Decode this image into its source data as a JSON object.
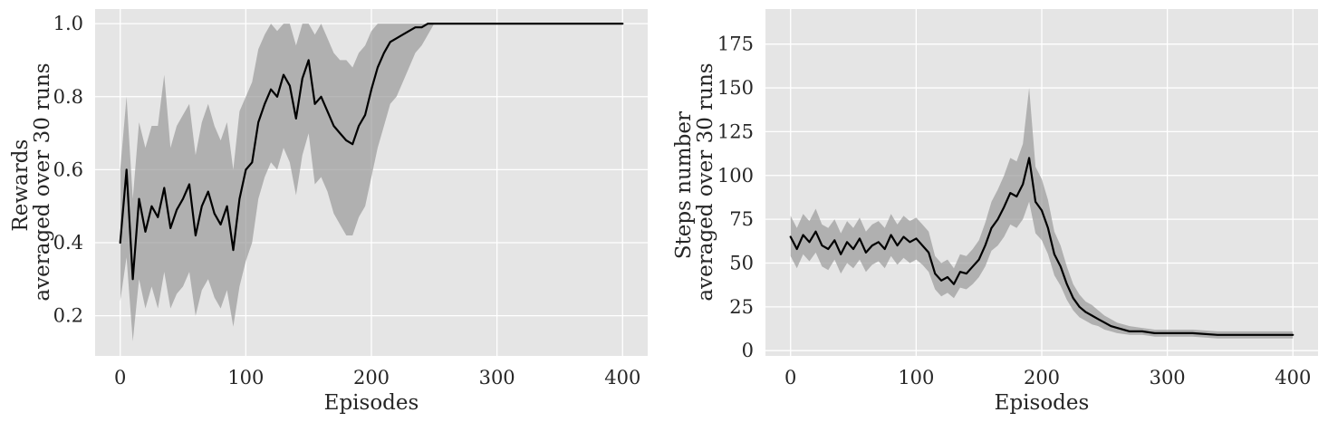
{
  "chart_data": [
    {
      "type": "line",
      "xlabel": "Episodes",
      "ylabel_lines": [
        "Rewards",
        "averaged over 30 runs"
      ],
      "xlim": [
        -20,
        420
      ],
      "ylim": [
        0.09,
        1.04
      ],
      "xticks": [
        0,
        100,
        200,
        300,
        400
      ],
      "yticks": [
        0.2,
        0.4,
        0.6,
        0.8,
        1.0
      ],
      "ytick_labels": [
        "0.2",
        "0.4",
        "0.6",
        "0.8",
        "1.0"
      ],
      "grid": true,
      "line_color": "#000000",
      "band_color": "#9a9a9a",
      "series": [
        {
          "x": [
            0,
            5,
            10,
            15,
            20,
            25,
            30,
            35,
            40,
            45,
            50,
            55,
            60,
            65,
            70,
            75,
            80,
            85,
            90,
            95,
            100,
            105,
            110,
            115,
            120,
            125,
            130,
            135,
            140,
            145,
            150,
            155,
            160,
            165,
            170,
            175,
            180,
            185,
            190,
            195,
            200,
            205,
            210,
            215,
            220,
            225,
            230,
            235,
            240,
            245,
            250,
            300,
            350,
            400
          ],
          "y": [
            0.4,
            0.6,
            0.3,
            0.52,
            0.43,
            0.5,
            0.47,
            0.55,
            0.44,
            0.49,
            0.52,
            0.56,
            0.42,
            0.5,
            0.54,
            0.48,
            0.45,
            0.5,
            0.38,
            0.52,
            0.6,
            0.62,
            0.73,
            0.78,
            0.82,
            0.8,
            0.86,
            0.83,
            0.74,
            0.85,
            0.9,
            0.78,
            0.8,
            0.76,
            0.72,
            0.7,
            0.68,
            0.67,
            0.72,
            0.75,
            0.82,
            0.88,
            0.92,
            0.95,
            0.96,
            0.97,
            0.98,
            0.99,
            0.99,
            1.0,
            1.0,
            1.0,
            1.0,
            1.0
          ],
          "ci_low": [
            0.24,
            0.36,
            0.13,
            0.3,
            0.22,
            0.28,
            0.22,
            0.32,
            0.22,
            0.26,
            0.28,
            0.32,
            0.2,
            0.27,
            0.3,
            0.25,
            0.22,
            0.27,
            0.17,
            0.28,
            0.35,
            0.4,
            0.52,
            0.58,
            0.62,
            0.6,
            0.66,
            0.62,
            0.53,
            0.64,
            0.7,
            0.56,
            0.58,
            0.54,
            0.48,
            0.45,
            0.42,
            0.42,
            0.47,
            0.5,
            0.58,
            0.66,
            0.72,
            0.78,
            0.8,
            0.84,
            0.88,
            0.92,
            0.94,
            0.97,
            1.0,
            1.0,
            1.0,
            1.0
          ],
          "ci_high": [
            0.6,
            0.8,
            0.52,
            0.73,
            0.66,
            0.72,
            0.72,
            0.86,
            0.66,
            0.72,
            0.75,
            0.78,
            0.64,
            0.73,
            0.78,
            0.72,
            0.68,
            0.73,
            0.6,
            0.76,
            0.8,
            0.84,
            0.93,
            0.97,
            1.0,
            0.98,
            1.0,
            1.0,
            0.94,
            1.0,
            1.0,
            0.97,
            1.0,
            0.96,
            0.92,
            0.9,
            0.9,
            0.88,
            0.92,
            0.94,
            0.98,
            1.0,
            1.0,
            1.0,
            1.0,
            1.0,
            1.0,
            1.0,
            1.0,
            1.0,
            1.0,
            1.0,
            1.0,
            1.0
          ]
        }
      ]
    },
    {
      "type": "line",
      "xlabel": "Episodes",
      "ylabel_lines": [
        "Steps number",
        "averaged over 30 runs"
      ],
      "xlim": [
        -20,
        420
      ],
      "ylim": [
        -3,
        195
      ],
      "xticks": [
        0,
        100,
        200,
        300,
        400
      ],
      "yticks": [
        0,
        25,
        50,
        75,
        100,
        125,
        150,
        175
      ],
      "ytick_labels": [
        "0",
        "25",
        "50",
        "75",
        "100",
        "125",
        "150",
        "175"
      ],
      "grid": true,
      "line_color": "#000000",
      "band_color": "#9a9a9a",
      "series": [
        {
          "x": [
            0,
            5,
            10,
            15,
            20,
            25,
            30,
            35,
            40,
            45,
            50,
            55,
            60,
            65,
            70,
            75,
            80,
            85,
            90,
            95,
            100,
            105,
            110,
            115,
            120,
            125,
            130,
            135,
            140,
            145,
            150,
            155,
            160,
            165,
            170,
            175,
            180,
            185,
            190,
            195,
            200,
            205,
            210,
            215,
            220,
            225,
            230,
            235,
            240,
            245,
            250,
            255,
            260,
            270,
            280,
            290,
            300,
            320,
            340,
            360,
            380,
            400
          ],
          "y": [
            65,
            58,
            66,
            62,
            68,
            60,
            58,
            63,
            55,
            62,
            58,
            64,
            56,
            60,
            62,
            58,
            66,
            60,
            65,
            62,
            64,
            60,
            56,
            44,
            40,
            42,
            38,
            45,
            44,
            48,
            52,
            60,
            70,
            75,
            82,
            90,
            88,
            95,
            110,
            85,
            80,
            70,
            55,
            48,
            38,
            30,
            25,
            22,
            20,
            18,
            16,
            14,
            13,
            11,
            11,
            10,
            10,
            10,
            9,
            9,
            9,
            9
          ],
          "ci_low": [
            54,
            47,
            55,
            51,
            56,
            48,
            46,
            52,
            44,
            50,
            47,
            52,
            45,
            49,
            51,
            47,
            54,
            49,
            53,
            50,
            52,
            49,
            45,
            35,
            31,
            33,
            30,
            36,
            35,
            38,
            42,
            48,
            57,
            60,
            65,
            72,
            70,
            75,
            85,
            67,
            63,
            55,
            43,
            37,
            29,
            23,
            19,
            17,
            15,
            14,
            12,
            11,
            10,
            9,
            9,
            8,
            8,
            8,
            7,
            7,
            7,
            7
          ],
          "ci_high": [
            77,
            70,
            78,
            74,
            81,
            72,
            70,
            75,
            67,
            74,
            70,
            76,
            68,
            72,
            74,
            70,
            78,
            72,
            77,
            74,
            76,
            72,
            68,
            54,
            50,
            52,
            47,
            55,
            54,
            58,
            63,
            73,
            85,
            92,
            100,
            110,
            108,
            118,
            150,
            105,
            98,
            86,
            68,
            60,
            48,
            38,
            32,
            28,
            26,
            23,
            20,
            18,
            16,
            14,
            13,
            12,
            12,
            12,
            11,
            11,
            11,
            11
          ]
        }
      ]
    }
  ]
}
